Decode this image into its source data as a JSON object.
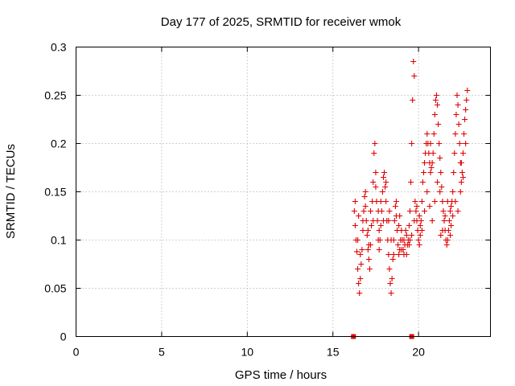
{
  "chart_data": {
    "type": "scatter",
    "title": "Day 177 of 2025, SRMTID for receiver wmok",
    "xlabel": "GPS time / hours",
    "ylabel": "SRMTID / TECUs",
    "xlim": [
      0,
      24.2
    ],
    "ylim": [
      0,
      0.3
    ],
    "x_ticks": [
      0,
      5,
      10,
      15,
      20
    ],
    "x_tick_labels": [
      "0",
      "5",
      "10",
      "15",
      "20"
    ],
    "y_ticks": [
      0,
      0.05,
      0.1,
      0.15,
      0.2,
      0.25,
      0.3
    ],
    "y_tick_labels": [
      "0",
      "0.05",
      "0.1",
      "0.15",
      "0.2",
      "0.25",
      "0.3"
    ],
    "grid": true,
    "legend": "none",
    "marker": "plus",
    "color": "#e00000",
    "series": [
      {
        "name": "SRMTID",
        "points": [
          [
            16.25,
            0.13
          ],
          [
            16.3,
            0.115
          ],
          [
            16.35,
            0.1
          ],
          [
            16.4,
            0.088
          ],
          [
            16.45,
            0.07
          ],
          [
            16.5,
            0.055
          ],
          [
            16.55,
            0.045
          ],
          [
            16.6,
            0.06
          ],
          [
            16.65,
            0.075
          ],
          [
            16.7,
            0.09
          ],
          [
            16.75,
            0.11
          ],
          [
            16.8,
            0.13
          ],
          [
            16.85,
            0.145
          ],
          [
            16.9,
            0.135
          ],
          [
            16.95,
            0.12
          ],
          [
            17.0,
            0.105
          ],
          [
            17.05,
            0.09
          ],
          [
            17.1,
            0.08
          ],
          [
            17.15,
            0.07
          ],
          [
            17.2,
            0.095
          ],
          [
            17.25,
            0.115
          ],
          [
            17.3,
            0.14
          ],
          [
            17.35,
            0.16
          ],
          [
            17.4,
            0.19
          ],
          [
            17.45,
            0.2
          ],
          [
            17.5,
            0.17
          ],
          [
            17.55,
            0.14
          ],
          [
            17.6,
            0.12
          ],
          [
            17.65,
            0.1
          ],
          [
            17.7,
            0.09
          ],
          [
            17.75,
            0.1
          ],
          [
            17.8,
            0.115
          ],
          [
            17.85,
            0.13
          ],
          [
            17.9,
            0.15
          ],
          [
            17.95,
            0.165
          ],
          [
            18.0,
            0.17
          ],
          [
            18.05,
            0.155
          ],
          [
            18.1,
            0.14
          ],
          [
            18.15,
            0.12
          ],
          [
            18.2,
            0.1
          ],
          [
            18.25,
            0.085
          ],
          [
            18.3,
            0.07
          ],
          [
            18.35,
            0.055
          ],
          [
            18.4,
            0.045
          ],
          [
            18.45,
            0.06
          ],
          [
            18.5,
            0.08
          ],
          [
            18.55,
            0.1
          ],
          [
            18.6,
            0.12
          ],
          [
            18.65,
            0.135
          ],
          [
            18.7,
            0.125
          ],
          [
            18.75,
            0.11
          ],
          [
            18.8,
            0.095
          ],
          [
            18.85,
            0.085
          ],
          [
            18.9,
            0.09
          ],
          [
            18.95,
            0.1
          ],
          [
            19.0,
            0.11
          ],
          [
            19.05,
            0.1
          ],
          [
            19.1,
            0.09
          ],
          [
            19.15,
            0.085
          ],
          [
            19.2,
            0.095
          ],
          [
            19.25,
            0.11
          ],
          [
            19.3,
            0.105
          ],
          [
            19.35,
            0.095
          ],
          [
            19.4,
            0.1
          ],
          [
            19.45,
            0.115
          ],
          [
            19.5,
            0.13
          ],
          [
            19.55,
            0.16
          ],
          [
            19.6,
            0.2
          ],
          [
            19.65,
            0.245
          ],
          [
            19.7,
            0.285
          ],
          [
            19.75,
            0.27
          ],
          [
            19.8,
            0.14
          ],
          [
            19.85,
            0.13
          ],
          [
            19.9,
            0.12
          ],
          [
            19.95,
            0.11
          ],
          [
            20.0,
            0.1
          ],
          [
            20.05,
            0.095
          ],
          [
            20.1,
            0.105
          ],
          [
            20.15,
            0.12
          ],
          [
            20.2,
            0.14
          ],
          [
            20.25,
            0.16
          ],
          [
            20.3,
            0.17
          ],
          [
            20.35,
            0.18
          ],
          [
            20.4,
            0.19
          ],
          [
            20.45,
            0.2
          ],
          [
            20.5,
            0.21
          ],
          [
            20.55,
            0.2
          ],
          [
            20.6,
            0.19
          ],
          [
            20.65,
            0.18
          ],
          [
            20.7,
            0.17
          ],
          [
            20.75,
            0.175
          ],
          [
            20.8,
            0.18
          ],
          [
            20.85,
            0.19
          ],
          [
            20.9,
            0.21
          ],
          [
            20.95,
            0.23
          ],
          [
            21.0,
            0.245
          ],
          [
            21.05,
            0.25
          ],
          [
            21.1,
            0.24
          ],
          [
            21.15,
            0.22
          ],
          [
            21.2,
            0.2
          ],
          [
            21.25,
            0.185
          ],
          [
            21.3,
            0.17
          ],
          [
            21.35,
            0.155
          ],
          [
            21.4,
            0.14
          ],
          [
            21.45,
            0.13
          ],
          [
            21.5,
            0.12
          ],
          [
            21.55,
            0.11
          ],
          [
            21.6,
            0.1
          ],
          [
            21.65,
            0.095
          ],
          [
            21.7,
            0.1
          ],
          [
            21.75,
            0.11
          ],
          [
            21.8,
            0.12
          ],
          [
            21.85,
            0.13
          ],
          [
            21.9,
            0.135
          ],
          [
            21.95,
            0.14
          ],
          [
            22.0,
            0.15
          ],
          [
            22.05,
            0.17
          ],
          [
            22.1,
            0.19
          ],
          [
            22.15,
            0.21
          ],
          [
            22.2,
            0.23
          ],
          [
            22.25,
            0.25
          ],
          [
            22.3,
            0.24
          ],
          [
            22.35,
            0.22
          ],
          [
            22.4,
            0.2
          ],
          [
            22.45,
            0.18
          ],
          [
            22.5,
            0.16
          ],
          [
            22.55,
            0.17
          ],
          [
            22.6,
            0.19
          ],
          [
            22.65,
            0.21
          ],
          [
            22.7,
            0.225
          ],
          [
            22.75,
            0.235
          ],
          [
            22.8,
            0.245
          ],
          [
            22.85,
            0.255
          ],
          [
            16.3,
            0.14
          ],
          [
            16.45,
            0.1
          ],
          [
            16.6,
            0.085
          ],
          [
            16.75,
            0.12
          ],
          [
            16.9,
            0.15
          ],
          [
            17.05,
            0.11
          ],
          [
            17.2,
            0.13
          ],
          [
            17.35,
            0.12
          ],
          [
            17.5,
            0.155
          ],
          [
            17.65,
            0.13
          ],
          [
            17.8,
            0.14
          ],
          [
            17.95,
            0.12
          ],
          [
            18.1,
            0.16
          ],
          [
            18.25,
            0.12
          ],
          [
            18.4,
            0.1
          ],
          [
            18.55,
            0.085
          ],
          [
            18.7,
            0.14
          ],
          [
            18.85,
            0.115
          ],
          [
            19.0,
            0.09
          ],
          [
            19.15,
            0.1
          ],
          [
            19.3,
            0.085
          ],
          [
            19.45,
            0.095
          ],
          [
            19.6,
            0.105
          ],
          [
            19.75,
            0.12
          ],
          [
            19.9,
            0.135
          ],
          [
            20.05,
            0.125
          ],
          [
            20.2,
            0.11
          ],
          [
            20.35,
            0.13
          ],
          [
            20.5,
            0.15
          ],
          [
            20.65,
            0.135
          ],
          [
            20.8,
            0.12
          ],
          [
            20.95,
            0.14
          ],
          [
            21.1,
            0.16
          ],
          [
            21.25,
            0.15
          ],
          [
            21.4,
            0.11
          ],
          [
            21.55,
            0.125
          ],
          [
            21.7,
            0.14
          ],
          [
            21.85,
            0.105
          ],
          [
            22.0,
            0.125
          ],
          [
            22.15,
            0.14
          ],
          [
            22.3,
            0.13
          ],
          [
            22.45,
            0.15
          ],
          [
            22.6,
            0.165
          ],
          [
            22.75,
            0.2
          ],
          [
            16.5,
            0.125
          ],
          [
            17.1,
            0.095
          ],
          [
            17.7,
            0.11
          ],
          [
            18.3,
            0.13
          ],
          [
            18.9,
            0.125
          ],
          [
            19.5,
            0.1
          ],
          [
            20.1,
            0.115
          ],
          [
            20.7,
            0.2
          ],
          [
            21.3,
            0.105
          ],
          [
            21.9,
            0.115
          ],
          [
            22.5,
            0.18
          ]
        ]
      }
    ],
    "zero_markers": {
      "marker": "square",
      "x": [
        16.2,
        19.6
      ],
      "y": [
        0,
        0
      ]
    }
  }
}
